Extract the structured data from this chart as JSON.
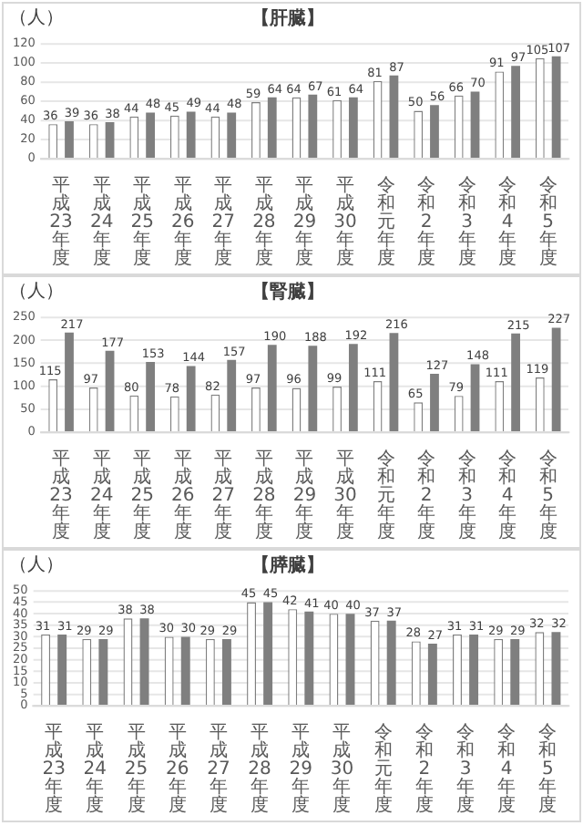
{
  "chart_data": [
    {
      "type": "bar",
      "title": "【肝臓】",
      "ylabel": "（人）",
      "categories": [
        "平成23年度",
        "平成24年度",
        "平成25年度",
        "平成26年度",
        "平成27年度",
        "平成28年度",
        "平成29年度",
        "平成30年度",
        "令和元年度",
        "令和2年度",
        "令和3年度",
        "令和4年度",
        "令和5年度"
      ],
      "series": [
        {
          "color": "#ffffff",
          "values": [
            36,
            36,
            44,
            45,
            44,
            59,
            64,
            61,
            81,
            50,
            66,
            91,
            105
          ]
        },
        {
          "color": "#7f7f7f",
          "values": [
            39,
            38,
            48,
            49,
            48,
            64,
            67,
            64,
            87,
            56,
            70,
            97,
            107
          ]
        }
      ],
      "ylim": [
        0,
        120
      ],
      "yticks": [
        0,
        20,
        40,
        60,
        80,
        100,
        120
      ],
      "grid": "y",
      "data_labels": true
    },
    {
      "type": "bar",
      "title": "【腎臓】",
      "ylabel": "（人）",
      "categories": [
        "平成23年度",
        "平成24年度",
        "平成25年度",
        "平成26年度",
        "平成27年度",
        "平成28年度",
        "平成29年度",
        "平成30年度",
        "令和元年度",
        "令和2年度",
        "令和3年度",
        "令和4年度",
        "令和5年度"
      ],
      "series": [
        {
          "color": "#ffffff",
          "values": [
            115,
            97,
            80,
            78,
            82,
            97,
            96,
            99,
            111,
            65,
            79,
            111,
            119
          ]
        },
        {
          "color": "#7f7f7f",
          "values": [
            217,
            177,
            153,
            144,
            157,
            190,
            188,
            192,
            216,
            127,
            148,
            215,
            227
          ]
        }
      ],
      "ylim": [
        0,
        250
      ],
      "yticks": [
        0,
        50,
        100,
        150,
        200,
        250
      ],
      "grid": "y",
      "data_labels": true
    },
    {
      "type": "bar",
      "title": "【膵臓】",
      "ylabel": "（人）",
      "categories": [
        "平成23年度",
        "平成24年度",
        "平成25年度",
        "平成26年度",
        "平成27年度",
        "平成28年度",
        "平成29年度",
        "平成30年度",
        "令和元年度",
        "令和2年度",
        "令和3年度",
        "令和4年度",
        "令和5年度"
      ],
      "series": [
        {
          "color": "#ffffff",
          "values": [
            31,
            29,
            38,
            30,
            29,
            45,
            42,
            40,
            37,
            28,
            31,
            29,
            32
          ]
        },
        {
          "color": "#7f7f7f",
          "values": [
            31,
            29,
            38,
            30,
            29,
            45,
            41,
            40,
            37,
            27,
            31,
            29,
            32
          ]
        }
      ],
      "ylim": [
        0,
        50
      ],
      "yticks": [
        0,
        5,
        10,
        15,
        20,
        25,
        30,
        35,
        40,
        45,
        50
      ],
      "grid": "y",
      "data_labels": true
    }
  ]
}
